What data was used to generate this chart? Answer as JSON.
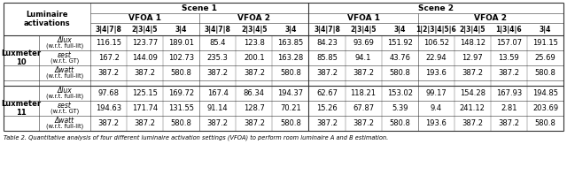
{
  "scene1_header": "Scene 1",
  "scene2_header": "Scene 2",
  "vfoa1": "VFOA 1",
  "vfoa2": "VFOA 2",
  "lum_act": "Luminaire\nactivations",
  "col_headers_s1_vfoa1": [
    "3|4|7|8",
    "2|3|4|5",
    "3|4"
  ],
  "col_headers_s1_vfoa2": [
    "3|4|7|8",
    "2|3|4|5",
    "3|4"
  ],
  "col_headers_s2_vfoa1": [
    "3|4|7|8",
    "2|3|4|5",
    "3|4"
  ],
  "col_headers_s2_vfoa2": [
    "1|2|3|4|5|6",
    "2|3|4|5",
    "1|3|4|6",
    "3|4"
  ],
  "row_groups": [
    {
      "label": "Luxmeter\n10",
      "rows": [
        {
          "sublabel_italic": "Δlux",
          "sublabel_normal": "(w.r.t. full-lit)",
          "values": [
            "116.15",
            "123.77",
            "189.01",
            "85.4",
            "123.8",
            "163.85",
            "84.23",
            "93.69",
            "151.92",
            "106.52",
            "148.12",
            "157.07",
            "191.15"
          ]
        },
        {
          "sublabel_italic": "εest",
          "sublabel_normal": "(w.r.t. GT)",
          "values": [
            "167.2",
            "144.09",
            "102.73",
            "235.3",
            "200.1",
            "163.28",
            "85.85",
            "94.1",
            "43.76",
            "22.94",
            "12.97",
            "13.59",
            "25.69"
          ]
        },
        {
          "sublabel_italic": "Δwatt",
          "sublabel_normal": "(w.r.t. full-lit)",
          "values": [
            "387.2",
            "387.2",
            "580.8",
            "387.2",
            "387.2",
            "580.8",
            "387.2",
            "387.2",
            "580.8",
            "193.6",
            "387.2",
            "387.2",
            "580.8"
          ]
        }
      ]
    },
    {
      "label": "Luxmeter\n11",
      "rows": [
        {
          "sublabel_italic": "Δlux",
          "sublabel_normal": "(w.r.t. full-lit)",
          "values": [
            "97.68",
            "125.15",
            "169.72",
            "167.4",
            "86.34",
            "194.37",
            "62.67",
            "118.21",
            "153.02",
            "99.17",
            "154.28",
            "167.93",
            "194.85"
          ]
        },
        {
          "sublabel_italic": "εest",
          "sublabel_normal": "(w.r.t. GT)",
          "values": [
            "194.63",
            "171.74",
            "131.55",
            "91.14",
            "128.7",
            "70.21",
            "15.26",
            "67.87",
            "5.39",
            "9.4",
            "241.12",
            "2.81",
            "203.69"
          ]
        },
        {
          "sublabel_italic": "Δwatt",
          "sublabel_normal": "(w.r.t. full-lit)",
          "values": [
            "387.2",
            "387.2",
            "580.8",
            "387.2",
            "387.2",
            "580.8",
            "387.2",
            "387.2",
            "580.8",
            "193.6",
            "387.2",
            "387.2",
            "580.8"
          ]
        }
      ]
    }
  ],
  "caption": "Table 2. Quantitative analysis of four different luminaire activation settings (VFOA) to perform room luminaire A and B estimation.",
  "line_color": "#333333"
}
